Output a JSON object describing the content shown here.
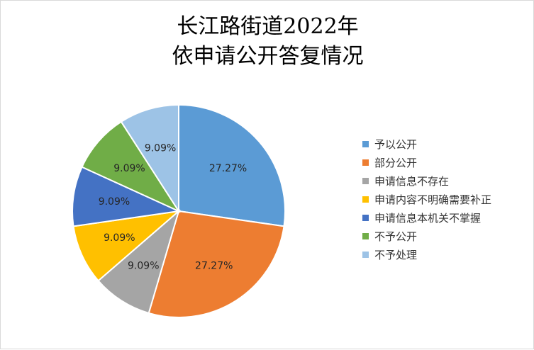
{
  "chart_data": {
    "type": "pie",
    "title_lines": [
      "长江路街道2022年",
      "依申请公开答复情况"
    ],
    "categories": [
      "予以公开",
      "部分公开",
      "申请信息不存在",
      "申请内容不明确需要补正",
      "申请信息本机关不掌握",
      "不予公开",
      "不予处理"
    ],
    "values": [
      27.27,
      27.27,
      9.09,
      9.09,
      9.09,
      9.09,
      9.09
    ],
    "labels": [
      "27.27%",
      "27.27%",
      "9.09%",
      "9.09%",
      "9.09%",
      "9.09%",
      "9.09%"
    ],
    "colors": [
      "#5B9BD5",
      "#ED7D31",
      "#A5A5A5",
      "#FFC000",
      "#4472C4",
      "#70AD47",
      "#9DC3E6"
    ],
    "legend_position": "right"
  }
}
